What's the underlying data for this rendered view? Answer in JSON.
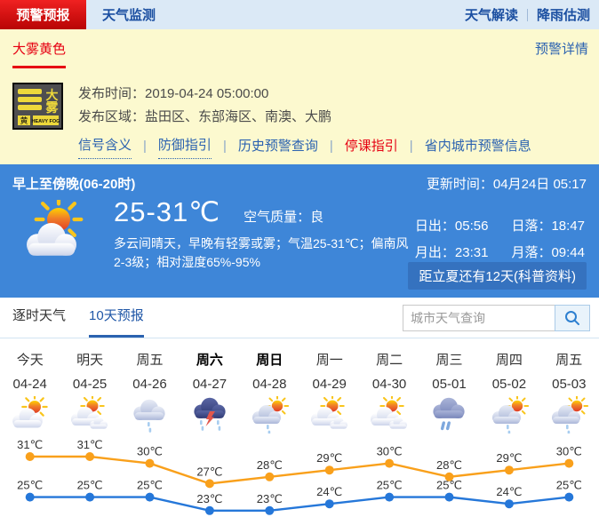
{
  "header": {
    "tabs": [
      {
        "label": "预警预报",
        "active": true
      },
      {
        "label": "天气监测",
        "active": false
      }
    ],
    "right_links": [
      "天气解读",
      "降雨估测"
    ]
  },
  "warning": {
    "type_label": "大雾黄色",
    "details_link": "预警详情",
    "icon": {
      "char1": "大",
      "char2": "雾",
      "level": "黄",
      "en": "HEAVY FOG"
    },
    "publish_time_label": "发布时间：",
    "publish_time": "2019-04-24 05:00:00",
    "area_label": "发布区域：",
    "area": "盐田区、东部海区、南澳、大鹏",
    "links": [
      {
        "label": "信号含义",
        "style": "dotted"
      },
      {
        "label": "防御指引",
        "style": "dotted"
      },
      {
        "label": "历史预警查询",
        "style": "plain"
      },
      {
        "label": "停课指引",
        "style": "red"
      },
      {
        "label": "省内城市预警信息",
        "style": "plain"
      }
    ]
  },
  "current": {
    "period": "早上至傍晚(06-20时)",
    "update_label": "更新时间：04月24日 05:17",
    "temp_range": "25-31℃",
    "air_quality_label": "空气质量：",
    "air_quality": "良",
    "desc_line1": "多云间晴天，早晚有轻雾或雾；气温25-31℃；偏南风",
    "desc_line2": "2-3级；相对湿度65%-95%",
    "weather_icon": "partly-cloudy",
    "sun_moon": [
      {
        "label": "日出：",
        "value": "05:56"
      },
      {
        "label": "日落：",
        "value": "18:47"
      },
      {
        "label": "月出：",
        "value": "23:31"
      },
      {
        "label": "月落：",
        "value": "09:44"
      }
    ],
    "countdown": "距立夏还有12天(科普资料)"
  },
  "tabs": {
    "hourly": "逐时天气",
    "ten_day": "10天预报"
  },
  "search": {
    "placeholder": "城市天气查询"
  },
  "forecast": {
    "days": [
      {
        "name": "今天",
        "date": "04-24",
        "icon": "partly-cloudy",
        "bold": false,
        "high": 31,
        "low": 25
      },
      {
        "name": "明天",
        "date": "04-25",
        "icon": "cloudy",
        "bold": false,
        "high": 31,
        "low": 25
      },
      {
        "name": "周五",
        "date": "04-26",
        "icon": "light-rain",
        "bold": false,
        "high": 30,
        "low": 25
      },
      {
        "name": "周六",
        "date": "04-27",
        "icon": "thunderstorm",
        "bold": true,
        "high": 27,
        "low": 23
      },
      {
        "name": "周日",
        "date": "04-28",
        "icon": "sun-shower",
        "bold": true,
        "high": 28,
        "low": 23
      },
      {
        "name": "周一",
        "date": "04-29",
        "icon": "cloudy",
        "bold": false,
        "high": 29,
        "low": 24
      },
      {
        "name": "周二",
        "date": "04-30",
        "icon": "cloudy",
        "bold": false,
        "high": 30,
        "low": 25
      },
      {
        "name": "周三",
        "date": "05-01",
        "icon": "heavy-rain",
        "bold": false,
        "high": 28,
        "low": 25
      },
      {
        "name": "周四",
        "date": "05-02",
        "icon": "sun-shower",
        "bold": false,
        "high": 29,
        "low": 24
      },
      {
        "name": "周五",
        "date": "05-03",
        "icon": "sun-shower",
        "bold": false,
        "high": 30,
        "low": 25
      }
    ]
  },
  "chart_data": {
    "type": "line",
    "categories": [
      "今天 04-24",
      "明天 04-25",
      "周五 04-26",
      "周六 04-27",
      "周日 04-28",
      "周一 04-29",
      "周二 04-30",
      "周三 05-01",
      "周四 05-02",
      "周五 05-03"
    ],
    "series": [
      {
        "name": "最高气温",
        "color": "#f9a01b",
        "values": [
          31,
          31,
          30,
          27,
          28,
          29,
          30,
          28,
          29,
          30
        ]
      },
      {
        "name": "最低气温",
        "color": "#2577d9",
        "values": [
          25,
          25,
          25,
          23,
          23,
          24,
          25,
          25,
          24,
          25
        ]
      }
    ],
    "unit": "℃",
    "ylim": [
      22,
      32
    ],
    "grid": false,
    "legend": "none",
    "title": ""
  },
  "colors": {
    "header_bg": "#dbe9f6",
    "active_tab_red": "#d40a0a",
    "link_blue": "#2b62b0",
    "alert_red": "#e60012",
    "warning_bg": "#fcf9cf",
    "current_bg": "#3e86d8",
    "countdown_bg": "#3572bf",
    "high_line": "#f9a01b",
    "low_line": "#2577d9"
  }
}
